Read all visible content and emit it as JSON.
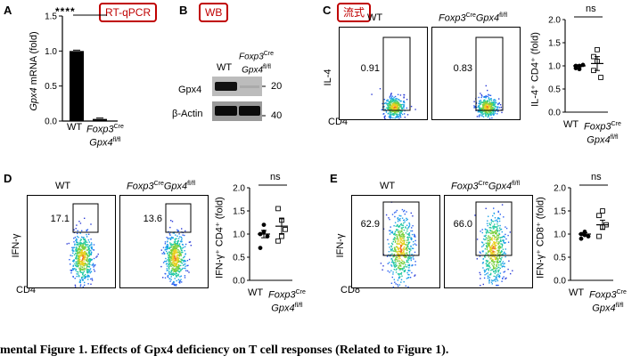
{
  "panels": {
    "A": {
      "letter": "A",
      "tag": "RT-qPCR",
      "ylabel_gene": "Gpx4",
      "ylabel_rest": " mRNA (fold)",
      "significance": "****",
      "x_wt": "WT",
      "x_ko_line1": "Foxp3",
      "x_ko_sup1": "Cre",
      "x_ko_line2": "Gpx4",
      "x_ko_sup2": "fl/fl",
      "yticks": [
        "0.0",
        "0.5",
        "1.0",
        "1.5"
      ]
    },
    "B": {
      "letter": "B",
      "tag": "WB",
      "col_wt": "WT",
      "col_ko_line1": "Foxp3",
      "col_ko_sup1": "Cre",
      "col_ko_line2": "Gpx4",
      "col_ko_sup2": "fl/fl",
      "row1": "Gpx4",
      "row2": "β-Actin",
      "mw1": "20",
      "mw2": "40"
    },
    "C": {
      "letter": "C",
      "tag": "流式",
      "wt_title": "WT",
      "ko_title_a": "Foxp3",
      "ko_sup_a": "Cre",
      "ko_title_b": "Gpx4",
      "ko_sup_b": "fl/fl",
      "y_axis": "IL-4",
      "x_axis": "CD4",
      "pct_wt": "0.91",
      "pct_ko": "0.83",
      "ns": "ns",
      "scatter_ylabel": "IL-4⁺ CD4⁺ (fold)",
      "yticks": [
        "0.0",
        "0.5",
        "1.0",
        "1.5",
        "2.0"
      ],
      "x_wt": "WT",
      "x_ko_line1": "Foxp3",
      "x_ko_sup1": "Cre",
      "x_ko_line2": "Gpx4",
      "x_ko_sup2": "fl/fl"
    },
    "D": {
      "letter": "D",
      "wt_title": "WT",
      "ko_title_a": "Foxp3",
      "ko_sup_a": "Cre",
      "ko_title_b": "Gpx4",
      "ko_sup_b": "fl/fl",
      "y_axis": "IFN-γ",
      "x_axis": "CD4",
      "pct_wt": "17.1",
      "pct_ko": "13.6",
      "ns": "ns",
      "scatter_ylabel": "IFN-γ⁺ CD4⁺ (fold)",
      "yticks": [
        "0.0",
        "0.5",
        "1.0",
        "1.5",
        "2.0"
      ],
      "x_wt": "WT",
      "x_ko_line1": "Foxp3",
      "x_ko_sup1": "Cre",
      "x_ko_line2": "Gpx4",
      "x_ko_sup2": "fl/fl"
    },
    "E": {
      "letter": "E",
      "wt_title": "WT",
      "ko_title_a": "Foxp3",
      "ko_sup_a": "Cre",
      "ko_title_b": "Gpx4",
      "ko_sup_b": "fl/fl",
      "y_axis": "IFN-γ",
      "x_axis": "CD8",
      "pct_wt": "62.9",
      "pct_ko": "66.0",
      "ns": "ns",
      "scatter_ylabel": "IFN-γ⁺ CD8⁺ (fold)",
      "yticks": [
        "0.0",
        "0.5",
        "1.0",
        "1.5",
        "2.0"
      ],
      "x_wt": "WT",
      "x_ko_line1": "Foxp3",
      "x_ko_sup1": "Cre",
      "x_ko_line2": "Gpx4",
      "x_ko_sup2": "fl/fl"
    }
  },
  "caption": "mental Figure 1. Effects of Gpx4 deficiency on T cell responses (Related to Figure 1).",
  "chart_data": [
    {
      "panel": "A",
      "type": "bar",
      "categories": [
        "WT",
        "Foxp3CreGpx4fl/fl"
      ],
      "values": [
        1.0,
        0.03
      ],
      "ylim": [
        0,
        1.5
      ]
    },
    {
      "panel": "C",
      "type": "scatter",
      "categories": [
        "WT",
        "Foxp3CreGpx4fl/fl"
      ],
      "points": [
        [
          0.95,
          1.0,
          1.02,
          1.0,
          0.93
        ],
        [
          1.2,
          1.35,
          0.75,
          0.9,
          1.1
        ]
      ],
      "means": [
        1.0,
        1.05
      ],
      "sems": [
        0.02,
        0.15
      ],
      "ylim": [
        0,
        2.0
      ]
    },
    {
      "panel": "D",
      "type": "scatter",
      "categories": [
        "WT",
        "Foxp3CreGpx4fl/fl"
      ],
      "points": [
        [
          1.0,
          1.05,
          0.95,
          0.7,
          1.2
        ],
        [
          1.55,
          1.3,
          1.1,
          0.85,
          0.95
        ]
      ],
      "means": [
        1.0,
        1.17
      ],
      "sems": [
        0.08,
        0.16
      ],
      "ylim": [
        0,
        2.0
      ]
    },
    {
      "panel": "E",
      "type": "scatter",
      "categories": [
        "WT",
        "Foxp3CreGpx4fl/fl"
      ],
      "points": [
        [
          1.0,
          1.05,
          0.95,
          0.9,
          0.98
        ],
        [
          1.4,
          1.5,
          1.2,
          0.95,
          1.15
        ]
      ],
      "means": [
        1.0,
        1.2
      ],
      "sems": [
        0.03,
        0.1
      ],
      "ylim": [
        0,
        2.0
      ]
    }
  ]
}
